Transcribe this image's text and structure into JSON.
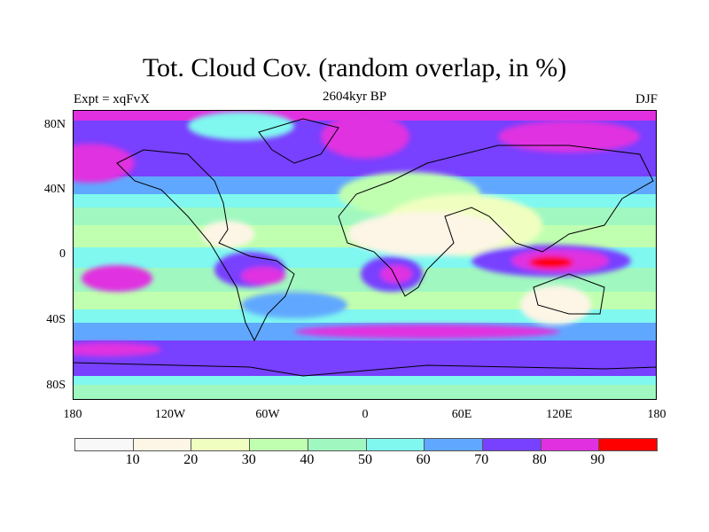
{
  "title": "Tot. Cloud Cov. (random overlap, in %)",
  "left_label": "Expt = xqFvX",
  "center_label": "2604kyr BP",
  "right_label": "DJF",
  "lat_labels": [
    "80N",
    "40N",
    "0",
    "40S",
    "80S"
  ],
  "lon_labels": [
    "180",
    "120W",
    "60W",
    "0",
    "60E",
    "120E",
    "180"
  ],
  "colorbar": {
    "labels": [
      "10",
      "20",
      "30",
      "40",
      "50",
      "60",
      "70",
      "80",
      "90"
    ],
    "colors": [
      "#f8f8f8",
      "#fdf5e6",
      "#f0ffc0",
      "#c0ffb0",
      "#a0f8c0",
      "#80f8f0",
      "#60a8ff",
      "#7840ff",
      "#e030e0",
      "#ff0000"
    ]
  }
}
